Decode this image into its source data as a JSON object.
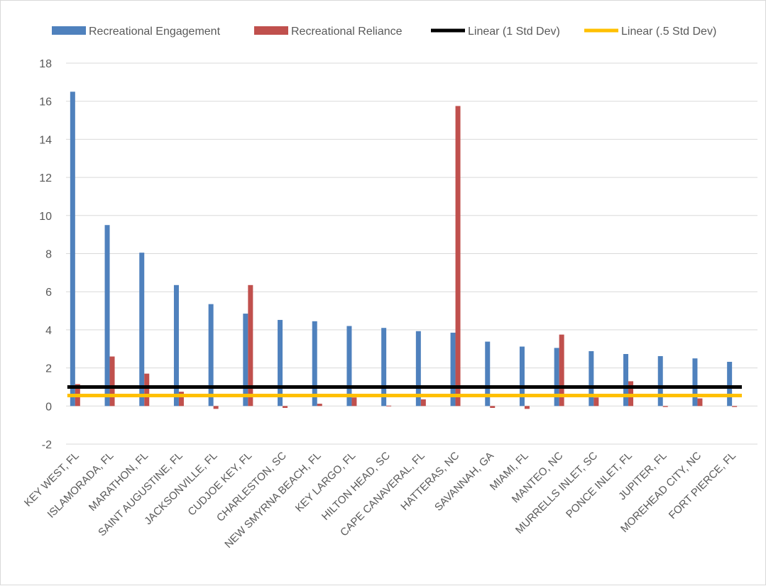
{
  "chart_data": {
    "type": "bar",
    "categories": [
      "KEY WEST, FL",
      "ISLAMORADA, FL",
      "MARATHON, FL",
      "SAINT AUGUSTINE, FL",
      "JACKSONVILLE, FL",
      "CUDJOE KEY, FL",
      "CHARLESTON, SC",
      "NEW SMYRNA BEACH, FL",
      "KEY LARGO, FL",
      "HILTON HEAD, SC",
      "CAPE CANAVERAL, FL",
      "HATTERAS, NC",
      "SAVANNAH, GA",
      "MIAMI, FL",
      "MANTEO, NC",
      "MURRELLS INLET, SC",
      "PONCE INLET, FL",
      "JUPITER, FL",
      "MOREHEAD CITY, NC",
      "FORT PIERCE, FL"
    ],
    "series": [
      {
        "name": "Recreational Engagement",
        "color": "#4f81bd",
        "values": [
          16.5,
          9.5,
          8.05,
          6.35,
          5.35,
          4.85,
          4.52,
          4.45,
          4.2,
          4.1,
          3.93,
          3.85,
          3.38,
          3.12,
          3.05,
          2.88,
          2.73,
          2.62,
          2.5,
          2.32
        ]
      },
      {
        "name": "Recreational Reliance",
        "color": "#c0504d",
        "values": [
          1.15,
          2.6,
          1.7,
          0.75,
          -0.15,
          6.35,
          -0.1,
          0.12,
          0.45,
          0.02,
          0.35,
          15.75,
          -0.1,
          -0.15,
          3.75,
          0.45,
          1.3,
          -0.05,
          0.4,
          -0.05
        ]
      }
    ],
    "reference_lines": [
      {
        "name": "Linear (1 Std Dev)",
        "value": 1.0,
        "color": "#000000"
      },
      {
        "name": "Linear (.5 Std Dev)",
        "value": 0.55,
        "color": "#ffc000"
      }
    ],
    "ylim": [
      -2,
      18
    ],
    "yticks": [
      -2,
      0,
      2,
      4,
      6,
      8,
      10,
      12,
      14,
      16,
      18
    ],
    "grid": true,
    "legend_position": "top"
  }
}
